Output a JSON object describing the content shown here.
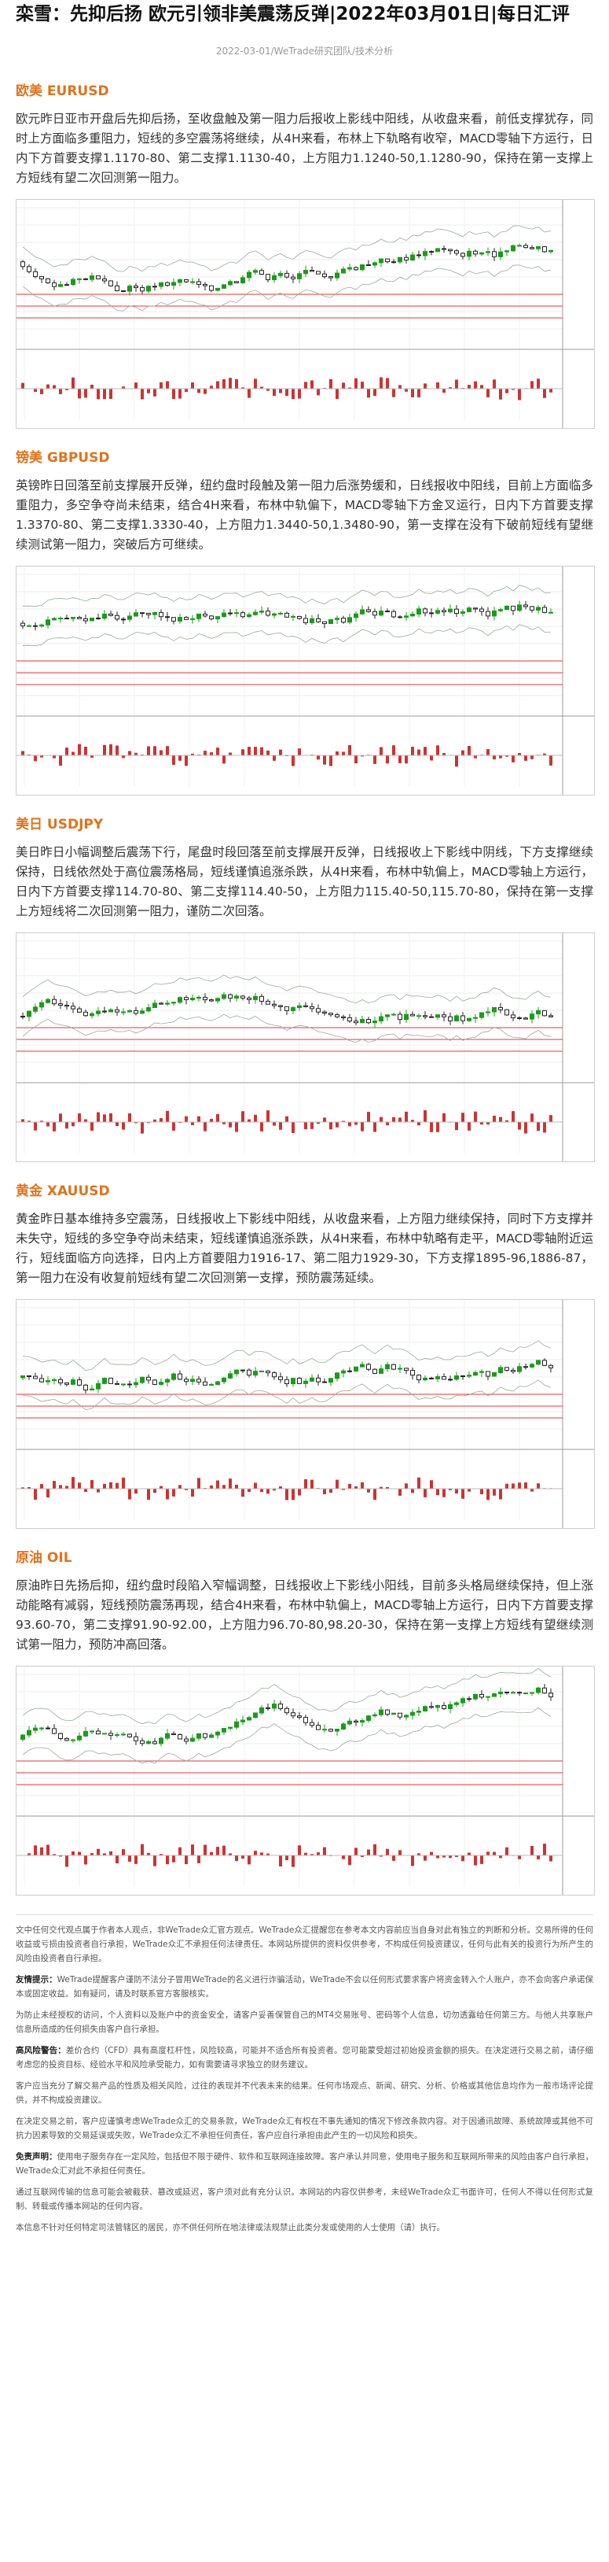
{
  "header": {
    "title": "栾雪：先抑后扬 欧元引领非美震荡反弹|2022年03月01日|每日汇评",
    "meta": "2022-03-01/WeTrade研究团队/技术分析"
  },
  "sections": [
    {
      "heading": "欧美 EURUSD",
      "text": "欧元昨日亚市开盘后先抑后扬，至收盘触及第一阻力后报收上影线中阳线，从收盘来看，前低支撑犹存，同时上方面临多重阻力，短线的多空震荡将继续，从4H来看，布林上下轨略有收窄，MACD零轴下方运行，日内下方首要支撑1.1170-80、第二支撑1.1130-40，上方阻力1.1240-50,1.1280-90，保持在第一支撑上方短线有望二次回测第一阻力。"
    },
    {
      "heading": "镑美 GBPUSD",
      "text": "英镑昨日回落至前支撑展开反弹，纽约盘时段触及第一阻力后涨势缓和，日线报收中阳线，目前上方面临多重阻力，多空争夺尚未结束，结合4H来看，布林中轨偏下，MACD零轴下方金叉运行，日内下方首要支撑1.3370-80、第二支撑1.3330-40，上方阻力1.3440-50,1.3480-90，第一支撑在没有下破前短线有望继续测试第一阻力，突破后方可继续。"
    },
    {
      "heading": "美日 USDJPY",
      "text": "美日昨日小幅调整后震荡下行，尾盘时段回落至前支撑展开反弹，日线报收上下影线中阴线，下方支撑继续保持，日线依然处于高位震荡格局，短线谨慎追涨杀跌，从4H来看，布林中轨偏上，MACD零轴上方运行，日内下方首要支撑114.70-80、第二支撑114.40-50，上方阻力115.40-50,115.70-80，保持在第一支撑上方短线将二次回测第一阻力，谨防二次回落。"
    },
    {
      "heading": "黄金 XAUUSD",
      "text": "黄金昨日基本维持多空震荡，日线报收上下影线中阳线，从收盘来看，上方阻力继续保持，同时下方支撑并未失守，短线的多空争夺尚未结束，短线谨慎追涨杀跌，从4H来看，布林中轨略有走平，MACD零轴附近运行，短线面临方向选择，日内上方首要阻力1916-17、第二阻力1929-30，下方支撑1895-96,1886-87，第一阻力在没有收复前短线有望二次回测第一支撑，预防震荡延续。"
    },
    {
      "heading": "原油 OIL",
      "text": "原油昨日先扬后抑，纽约盘时段陷入窄幅调整，日线报收上下影线小阳线，目前多头格局继续保持，但上涨动能略有减弱，短线预防震荡再现，结合4H来看，布林中轨偏上，MACD零轴上方运行，日内下方首要支撑93.60-70，第二支撑91.90-92.00，上方阻力96.70-80,98.20-30，保持在第一支撑上方短线有望继续测试第一阻力，预防冲高回落。"
    }
  ],
  "disclaimer": [
    {
      "text": "文中任何交代观点属于作者本人观点，非WeTrade众汇官方观点。WeTrade众汇提醒您在参考本文内容前应当自身对此有独立的判断和分析。交易所得的任何收益或亏损由投资者自行承担，WeTrade众汇不承担任何法律责任。本网站所提供的资料仅供参考，不构成任何投资建议，任何与此有关的投资行为所产生的风险由投资者自行承担。"
    },
    {
      "label": "友情提示：",
      "text": "WeTrade提醒客户谨防不法分子冒用WeTrade的名义进行诈骗活动，WeTrade不会以任何形式要求客户将资金转入个人账户，亦不会向客户承诺保本或固定收益。如有疑问，请及时联系官方客服核实。"
    },
    {
      "text": "为防止未经授权的访问，个人资料以及账户中的资金安全，请客户妥善保管自己的MT4交易账号、密码等个人信息，切勿透露给任何第三方。与他人共享账户信息所造成的任何损失由客户自行承担。"
    },
    {
      "label": "高风险警告：",
      "text": "差价合约（CFD）具有高度杠杆性，风险较高，可能并不适合所有投资者。您可能蒙受超过初始投资金额的损失。在决定进行交易之前，请仔细考虑您的投资目标、经验水平和风险承受能力，如有需要请寻求独立的财务建议。"
    },
    {
      "text": "客户应当充分了解交易产品的性质及相关风险，过往的表现并不代表未来的结果。任何市场观点、新闻、研究、分析、价格或其他信息均作为一般市场评论提供，并不构成投资建议。"
    },
    {
      "text": "在决定交易之前，客户应谨慎考虑WeTrade众汇的交易条款，WeTrade众汇有权在不事先通知的情况下修改条款内容。对于因通讯故障、系统故障或其他不可抗力因素导致的交易延误或失败，WeTrade众汇不承担任何责任，客户应自行承担由此产生的一切风险和损失。"
    },
    {
      "label": "免责声明：",
      "text": "使用电子服务存在一定风险，包括但不限于硬件、软件和互联网连接故障。客户承认并同意，使用电子服务和互联网所带来的风险由客户自行承担，WeTrade众汇对此不承担任何责任。"
    },
    {
      "text": "通过互联网传输的信息可能会被截获、篡改或延迟，客户须对此有充分认识。本网站的内容仅供参考，未经WeTrade众汇书面许可，任何人不得以任何形式复制、转载或传播本网站的任何内容。"
    },
    {
      "text": "本信息不针对任何特定司法管辖区的居民，亦不供任何所在地法律或法规禁止此类分发或使用的人士使用（请）执行。"
    }
  ]
}
